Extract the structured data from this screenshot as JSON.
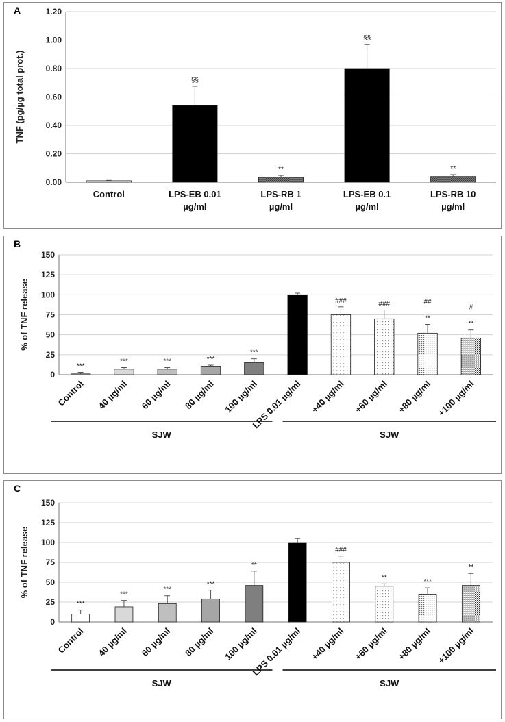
{
  "patterns": {
    "black": "#000000",
    "white": "#ffffff",
    "stroke": "#222222",
    "grid": "#d0d0d0"
  },
  "chart_data": [
    {
      "panel": "A",
      "type": "bar",
      "ylabel": "TNF (pg/µg total prot.)",
      "ylim": [
        0,
        1.2
      ],
      "yticks": [
        "0.00",
        "0.20",
        "0.40",
        "0.60",
        "0.80",
        "1.00",
        "1.20"
      ],
      "categories": [
        [
          "Control"
        ],
        [
          "LPS-EB 0.01",
          "µg/ml"
        ],
        [
          "LPS-RB 1",
          "µg/ml"
        ],
        [
          "LPS-EB 0.1",
          "µg/ml"
        ],
        [
          "LPS-RB 10",
          "µg/ml"
        ]
      ],
      "values": [
        0.01,
        0.54,
        0.035,
        0.8,
        0.04
      ],
      "errors": [
        0.003,
        0.135,
        0.013,
        0.17,
        0.013
      ],
      "annotations": [
        [
          ""
        ],
        [
          "§§"
        ],
        [
          "**"
        ],
        [
          "§§"
        ],
        [
          "**"
        ]
      ],
      "fills": [
        "white",
        "black",
        "hatchA",
        "black",
        "hatchA"
      ]
    },
    {
      "panel": "B",
      "type": "bar",
      "ylabel": "% of TNF release",
      "ylim": [
        0,
        150
      ],
      "yticks": [
        "0",
        "25",
        "50",
        "75",
        "100",
        "125",
        "150"
      ],
      "categories": [
        "Control",
        "40 µg/ml",
        "60 µg/ml",
        "80 µg/ml",
        "100 µg/ml",
        "LPS 0.01 µg/ml",
        "+40 µg/ml",
        "+60 µg/ml",
        "+80 µg/ml",
        "+100 µg/ml"
      ],
      "values": [
        1,
        7,
        7,
        10,
        15,
        100,
        75,
        70,
        52,
        46
      ],
      "errors": [
        2,
        2,
        2,
        2,
        5,
        2,
        10,
        11,
        11,
        10
      ],
      "annotations": [
        [
          "***"
        ],
        [
          "***"
        ],
        [
          "***"
        ],
        [
          "***"
        ],
        [
          "***"
        ],
        [
          ""
        ],
        [
          "###"
        ],
        [
          "###"
        ],
        [
          "##",
          "**"
        ],
        [
          "#",
          "**"
        ]
      ],
      "fills": [
        "white",
        "gray1",
        "gray2",
        "gray3",
        "gray4",
        "black",
        "dot1",
        "dot2",
        "dot3",
        "dot4"
      ],
      "groups": [
        "SJW",
        "SJW"
      ]
    },
    {
      "panel": "C",
      "type": "bar",
      "ylabel": "% of TNF release",
      "ylim": [
        0,
        150
      ],
      "yticks": [
        "0",
        "25",
        "50",
        "75",
        "100",
        "125",
        "150"
      ],
      "categories": [
        "Control",
        "40 µg/ml",
        "60 µg/ml",
        "80 µg/ml",
        "100 µg/ml",
        "LPS 0.01 µg/ml",
        "+40 µg/ml",
        "+60 µg/ml",
        "+80 µg/ml",
        "+100 µg/ml"
      ],
      "values": [
        10,
        19,
        23,
        29,
        46,
        100,
        75,
        45,
        35,
        46
      ],
      "errors": [
        5,
        8,
        10,
        11,
        18,
        5,
        8,
        3,
        8,
        15
      ],
      "annotations": [
        [
          "***"
        ],
        [
          "***"
        ],
        [
          "***"
        ],
        [
          "***"
        ],
        [
          "**"
        ],
        [
          ""
        ],
        [
          "###"
        ],
        [
          "**"
        ],
        [
          "***"
        ],
        [
          "**"
        ]
      ],
      "fills": [
        "white",
        "gray1",
        "gray2",
        "gray3",
        "gray4",
        "black",
        "dot1",
        "dot2",
        "dot3",
        "dot4"
      ],
      "groups": [
        "SJW",
        "SJW"
      ]
    }
  ]
}
